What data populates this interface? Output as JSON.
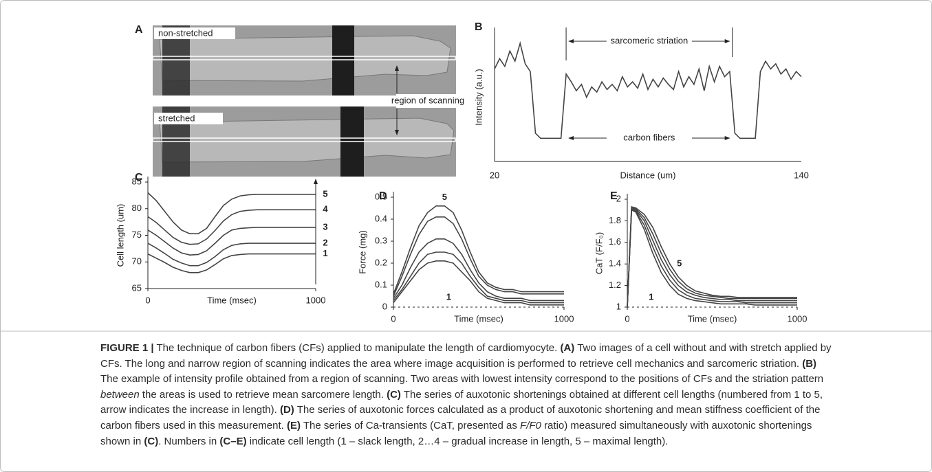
{
  "panel_a": {
    "title": "A",
    "labels": [
      "non-stretched",
      "stretched"
    ],
    "annotation": "region of scanning"
  },
  "chart_data": [
    {
      "type": "line",
      "title": "B",
      "x_label": "Distance (um)",
      "y_label": "Intensity (a.u.)",
      "annotations": [
        "sarcomeric striation",
        "carbon fibers"
      ],
      "color": "#444444",
      "xlim": [
        20,
        140
      ],
      "xticks": [
        20,
        140
      ],
      "ylim": [
        0,
        1
      ],
      "x": [
        20,
        22,
        24,
        26,
        28,
        30,
        32,
        34,
        36,
        38,
        40,
        42,
        44,
        46,
        48,
        50,
        52,
        54,
        56,
        58,
        60,
        62,
        64,
        66,
        68,
        70,
        72,
        74,
        76,
        78,
        80,
        82,
        84,
        86,
        88,
        90,
        92,
        94,
        96,
        98,
        100,
        102,
        104,
        106,
        108,
        110,
        112,
        114,
        116,
        118,
        120,
        122,
        124,
        126,
        128,
        130,
        132,
        134,
        136,
        138,
        140
      ],
      "series": [
        {
          "values": [
            0.72,
            0.8,
            0.74,
            0.86,
            0.78,
            0.92,
            0.76,
            0.7,
            0.22,
            0.18,
            0.18,
            0.18,
            0.18,
            0.18,
            0.68,
            0.62,
            0.55,
            0.6,
            0.5,
            0.58,
            0.54,
            0.62,
            0.56,
            0.6,
            0.55,
            0.66,
            0.58,
            0.62,
            0.57,
            0.68,
            0.56,
            0.64,
            0.58,
            0.65,
            0.6,
            0.56,
            0.7,
            0.58,
            0.66,
            0.6,
            0.72,
            0.55,
            0.74,
            0.62,
            0.74,
            0.66,
            0.7,
            0.22,
            0.18,
            0.18,
            0.18,
            0.18,
            0.7,
            0.78,
            0.72,
            0.76,
            0.68,
            0.72,
            0.64,
            0.7,
            0.66
          ]
        }
      ]
    },
    {
      "type": "line",
      "title": "C",
      "x_label": "Time (msec)",
      "y_label": "Cell length (um)",
      "color": "#444444",
      "xlim": [
        0,
        1000
      ],
      "xticks": [
        0,
        1000
      ],
      "ylim": [
        65,
        85
      ],
      "yticks": [
        65,
        70,
        75,
        80,
        85
      ],
      "x": [
        0,
        50,
        100,
        150,
        200,
        250,
        300,
        350,
        400,
        450,
        500,
        550,
        600,
        650,
        700,
        750,
        800,
        850,
        900,
        950,
        1000
      ],
      "series": [
        {
          "name": "1",
          "values": [
            71.5,
            70.7,
            69.9,
            69.0,
            68.4,
            68.0,
            68.0,
            68.5,
            69.5,
            70.6,
            71.2,
            71.4,
            71.5,
            71.5,
            71.5,
            71.5,
            71.5,
            71.5,
            71.5,
            71.5,
            71.5
          ]
        },
        {
          "name": "2",
          "values": [
            73.5,
            72.6,
            71.6,
            70.5,
            69.8,
            69.3,
            69.3,
            69.9,
            71.0,
            72.3,
            73.1,
            73.4,
            73.5,
            73.5,
            73.5,
            73.5,
            73.5,
            73.5,
            73.5,
            73.5,
            73.5
          ]
        },
        {
          "name": "3",
          "values": [
            76.0,
            75.0,
            73.8,
            72.6,
            71.7,
            71.3,
            71.4,
            72.1,
            73.5,
            75.0,
            76.0,
            76.3,
            76.4,
            76.5,
            76.5,
            76.5,
            76.5,
            76.5,
            76.5,
            76.5,
            76.5
          ]
        },
        {
          "name": "4",
          "values": [
            78.5,
            77.4,
            76.0,
            74.6,
            73.7,
            73.3,
            73.4,
            74.3,
            75.9,
            77.7,
            78.9,
            79.5,
            79.7,
            79.8,
            79.8,
            79.8,
            79.8,
            79.8,
            79.8,
            79.8,
            79.8
          ]
        },
        {
          "name": "5",
          "values": [
            83.0,
            81.5,
            79.5,
            77.5,
            76.0,
            75.3,
            75.3,
            76.3,
            78.5,
            80.6,
            81.8,
            82.4,
            82.6,
            82.7,
            82.7,
            82.7,
            82.7,
            82.7,
            82.7,
            82.7,
            82.7
          ]
        }
      ]
    },
    {
      "type": "line",
      "title": "D",
      "x_label": "Time (msec)",
      "y_label": "Force (mg)",
      "color": "#444444",
      "xlim": [
        0,
        1000
      ],
      "xticks": [
        0,
        1000
      ],
      "ylim": [
        0,
        0.5
      ],
      "yticks": [
        0,
        0.1,
        0.2,
        0.3,
        0.4,
        0.5
      ],
      "x": [
        0,
        50,
        100,
        150,
        200,
        250,
        300,
        350,
        400,
        450,
        500,
        550,
        600,
        650,
        700,
        750,
        800,
        850,
        900,
        950,
        1000
      ],
      "series": [
        {
          "name": "1",
          "values": [
            0.02,
            0.07,
            0.12,
            0.17,
            0.2,
            0.21,
            0.21,
            0.2,
            0.16,
            0.12,
            0.07,
            0.04,
            0.03,
            0.02,
            0.02,
            0.02,
            0.01,
            0.01,
            0.01,
            0.01,
            0.01
          ]
        },
        {
          "values": [
            0.03,
            0.08,
            0.14,
            0.2,
            0.24,
            0.25,
            0.25,
            0.24,
            0.2,
            0.14,
            0.09,
            0.05,
            0.04,
            0.03,
            0.03,
            0.03,
            0.02,
            0.02,
            0.02,
            0.02,
            0.02
          ]
        },
        {
          "values": [
            0.04,
            0.1,
            0.18,
            0.25,
            0.29,
            0.31,
            0.31,
            0.29,
            0.24,
            0.17,
            0.11,
            0.07,
            0.05,
            0.04,
            0.04,
            0.04,
            0.03,
            0.03,
            0.03,
            0.03,
            0.03
          ]
        },
        {
          "values": [
            0.05,
            0.14,
            0.24,
            0.33,
            0.39,
            0.41,
            0.41,
            0.38,
            0.31,
            0.22,
            0.14,
            0.1,
            0.08,
            0.07,
            0.07,
            0.06,
            0.06,
            0.06,
            0.06,
            0.06,
            0.06
          ]
        },
        {
          "name": "5",
          "values": [
            0.06,
            0.16,
            0.27,
            0.37,
            0.43,
            0.46,
            0.46,
            0.43,
            0.35,
            0.25,
            0.16,
            0.11,
            0.09,
            0.08,
            0.08,
            0.07,
            0.07,
            0.07,
            0.07,
            0.07,
            0.07
          ]
        }
      ]
    },
    {
      "type": "line",
      "title": "E",
      "x_label": "Time (msec)",
      "y_label": "CaT (F/F₀)",
      "color": "#444444",
      "xlim": [
        0,
        1000
      ],
      "xticks": [
        0,
        1000
      ],
      "ylim": [
        1,
        2
      ],
      "yticks": [
        1,
        1.2,
        1.4,
        1.6,
        1.8,
        2
      ],
      "x": [
        0,
        25,
        50,
        100,
        150,
        200,
        250,
        300,
        350,
        400,
        450,
        500,
        550,
        600,
        650,
        700,
        750,
        800,
        850,
        900,
        950,
        1000
      ],
      "series": [
        {
          "name": "1",
          "values": [
            1.0,
            1.9,
            1.88,
            1.72,
            1.5,
            1.32,
            1.2,
            1.12,
            1.08,
            1.06,
            1.05,
            1.04,
            1.03,
            1.03,
            1.03,
            1.03,
            1.02,
            1.02,
            1.02,
            1.02,
            1.02,
            1.02
          ]
        },
        {
          "values": [
            1.0,
            1.9,
            1.89,
            1.76,
            1.56,
            1.38,
            1.25,
            1.16,
            1.11,
            1.08,
            1.07,
            1.06,
            1.05,
            1.05,
            1.05,
            1.04,
            1.04,
            1.04,
            1.04,
            1.04,
            1.04,
            1.04
          ]
        },
        {
          "values": [
            1.0,
            1.91,
            1.9,
            1.8,
            1.62,
            1.44,
            1.3,
            1.2,
            1.14,
            1.11,
            1.09,
            1.08,
            1.07,
            1.07,
            1.06,
            1.06,
            1.06,
            1.06,
            1.06,
            1.06,
            1.06,
            1.06
          ]
        },
        {
          "values": [
            1.0,
            1.92,
            1.91,
            1.83,
            1.68,
            1.5,
            1.35,
            1.24,
            1.17,
            1.13,
            1.11,
            1.1,
            1.09,
            1.08,
            1.08,
            1.08,
            1.08,
            1.08,
            1.08,
            1.08,
            1.08,
            1.08
          ]
        },
        {
          "name": "5",
          "values": [
            1.0,
            1.93,
            1.92,
            1.86,
            1.74,
            1.56,
            1.4,
            1.28,
            1.2,
            1.15,
            1.13,
            1.11,
            1.1,
            1.1,
            1.09,
            1.09,
            1.09,
            1.09,
            1.09,
            1.09,
            1.09,
            1.09
          ]
        }
      ]
    }
  ],
  "caption": {
    "parts": [
      "FIGURE 1 |",
      "The technique of carbon fibers (CFs) applied to manipulate the length of cardiomyocyte.",
      "(A)",
      "Two images of a cell without and with stretch applied by CFs. The long and narrow region of scanning indicates the area where image acquisition is performed to retrieve cell mechanics and sarcomeric striation.",
      "(B)",
      "The example of intensity profile obtained from a region of scanning. Two areas with lowest intensity correspond to the positions of CFs and the striation pattern",
      "between",
      "the areas is used to retrieve mean sarcomere length.",
      "(C)",
      "The series of auxotonic shortenings obtained at different cell lengths (numbered from 1 to 5, arrow indicates the increase in length).",
      "(D)",
      "The series of auxotonic forces calculated as a product of auxotonic shortening and mean stiffness coefficient of the carbon fibers used in this measurement.",
      "(E)",
      "The series of Ca-transients (CaT, presented as",
      "F/F0",
      "ratio) measured simultaneously with auxotonic shortenings shown in",
      "(C)",
      ". Numbers in",
      "(C–E)",
      "indicate cell length (1 – slack length, 2…4 – gradual increase in length, 5 – maximal length)."
    ]
  }
}
